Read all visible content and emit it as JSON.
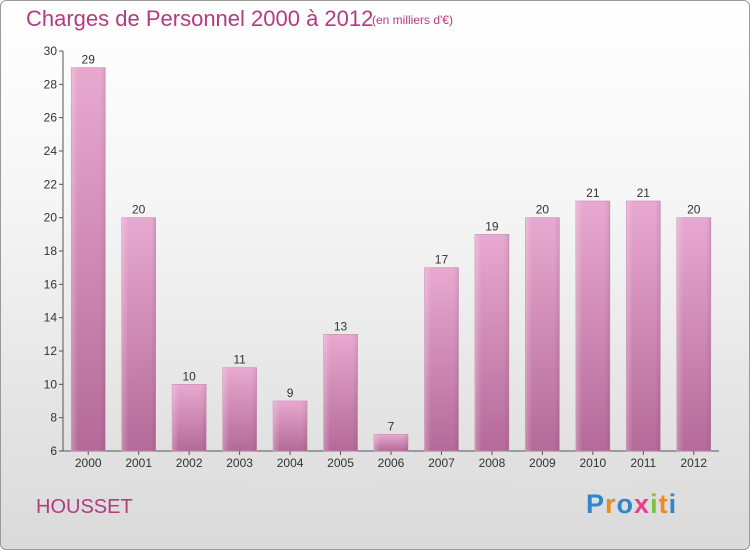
{
  "title": "Charges de Personnel 2000 à 2012",
  "subtitle": "(en milliers d'€)",
  "commune": "HOUSSET",
  "logo": {
    "letters": [
      "P",
      "r",
      "o",
      "x",
      "i",
      "t",
      "i"
    ],
    "colors": [
      "#2f86c8",
      "#f08a1c",
      "#2f86c8",
      "#e83e8c",
      "#7cc242",
      "#f08a1c",
      "#2f86c8"
    ]
  },
  "colors": {
    "bar_top": "#e8a9d0",
    "bar_bottom": "#b46a98",
    "accent": "#b33b7e"
  },
  "chart_data": {
    "type": "bar",
    "title": "Charges de Personnel 2000 à 2012",
    "subtitle": "(en milliers d'€)",
    "xlabel": "",
    "ylabel": "",
    "categories": [
      "2000",
      "2001",
      "2002",
      "2003",
      "2004",
      "2005",
      "2006",
      "2007",
      "2008",
      "2009",
      "2010",
      "2011",
      "2012"
    ],
    "values": [
      29,
      20,
      10,
      11,
      9,
      13,
      7,
      17,
      19,
      20,
      21,
      21,
      20
    ],
    "ylim": [
      6,
      30
    ],
    "yticks": [
      6,
      8,
      10,
      12,
      14,
      16,
      18,
      20,
      22,
      24,
      26,
      28,
      30
    ],
    "grid": false,
    "legend": "none"
  }
}
